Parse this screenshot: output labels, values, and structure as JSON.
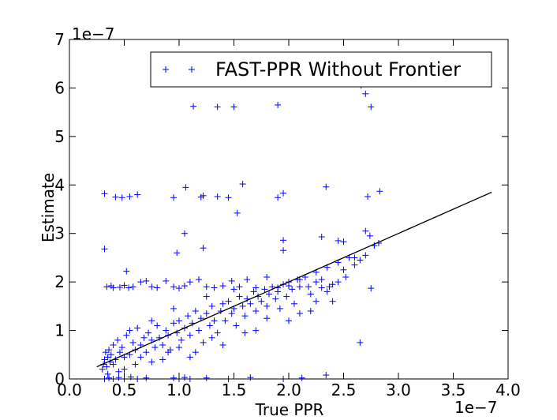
{
  "chart_data": {
    "type": "scatter",
    "xlabel": "True PPR",
    "ylabel": "Estimate",
    "xlim": [
      0.0,
      4.0
    ],
    "ylim": [
      0,
      7
    ],
    "x_ticks": [
      "0.0",
      "0.5",
      "1.0",
      "1.5",
      "2.0",
      "2.5",
      "3.0",
      "3.5",
      "4.0"
    ],
    "y_ticks": [
      "0",
      "1",
      "2",
      "3",
      "4",
      "5",
      "6",
      "7"
    ],
    "x_offset": "1e−7",
    "y_offset": "1e−7",
    "grid": false,
    "legend_position": "top-right",
    "marker_color": "#0000ff",
    "line_color": "#000000",
    "series": [
      {
        "name": "FAST-PPR Without Frontier",
        "marker": "+",
        "points": [
          [
            0.32,
            3.82
          ],
          [
            0.42,
            3.75
          ],
          [
            0.48,
            3.74
          ],
          [
            0.55,
            3.76
          ],
          [
            0.62,
            3.8
          ],
          [
            0.95,
            3.74
          ],
          [
            1.06,
            3.95
          ],
          [
            1.2,
            3.75
          ],
          [
            1.22,
            3.78
          ],
          [
            1.35,
            3.76
          ],
          [
            1.45,
            3.74
          ],
          [
            1.58,
            4.02
          ],
          [
            1.9,
            3.74
          ],
          [
            1.95,
            3.83
          ],
          [
            2.34,
            3.96
          ],
          [
            2.72,
            3.76
          ],
          [
            2.83,
            3.87
          ],
          [
            1.53,
            3.42
          ],
          [
            1.13,
            5.62
          ],
          [
            1.35,
            5.61
          ],
          [
            1.5,
            5.61
          ],
          [
            1.9,
            5.65
          ],
          [
            2.66,
            6.05
          ],
          [
            2.7,
            5.88
          ],
          [
            2.75,
            5.61
          ],
          [
            2.76,
            6.35
          ],
          [
            0.32,
            2.68
          ],
          [
            1.05,
            3.0
          ],
          [
            0.98,
            2.6
          ],
          [
            1.22,
            2.7
          ],
          [
            1.95,
            2.65
          ],
          [
            1.95,
            2.86
          ],
          [
            2.3,
            2.93
          ],
          [
            2.45,
            2.85
          ],
          [
            2.5,
            2.83
          ],
          [
            2.7,
            3.05
          ],
          [
            2.74,
            2.95
          ],
          [
            2.78,
            2.75
          ],
          [
            2.82,
            2.8
          ],
          [
            0.52,
            2.22
          ],
          [
            0.34,
            1.9
          ],
          [
            0.38,
            1.92
          ],
          [
            0.4,
            1.88
          ],
          [
            0.46,
            1.89
          ],
          [
            0.5,
            1.93
          ],
          [
            0.54,
            1.88
          ],
          [
            0.58,
            1.9
          ],
          [
            0.65,
            2.0
          ],
          [
            0.7,
            2.02
          ],
          [
            0.75,
            1.9
          ],
          [
            0.8,
            1.88
          ],
          [
            0.88,
            2.02
          ],
          [
            0.95,
            1.9
          ],
          [
            1.0,
            1.87
          ],
          [
            1.05,
            1.92
          ],
          [
            1.1,
            2.0
          ],
          [
            1.18,
            2.05
          ],
          [
            1.25,
            1.9
          ],
          [
            1.32,
            1.88
          ],
          [
            1.4,
            1.92
          ],
          [
            1.48,
            2.02
          ],
          [
            1.55,
            1.9
          ],
          [
            1.62,
            2.05
          ],
          [
            1.7,
            1.88
          ],
          [
            1.8,
            2.1
          ],
          [
            1.9,
            1.88
          ],
          [
            2.0,
            1.92
          ],
          [
            2.1,
            2.05
          ],
          [
            2.18,
            1.9
          ],
          [
            2.25,
            2.0
          ],
          [
            2.3,
            1.88
          ],
          [
            2.37,
            1.9
          ],
          [
            2.45,
            2.0
          ],
          [
            2.52,
            2.1
          ],
          [
            2.6,
            2.5
          ],
          [
            2.75,
            1.87
          ],
          [
            0.32,
            0.0
          ],
          [
            0.36,
            0.02
          ],
          [
            0.4,
            0.0
          ],
          [
            0.45,
            0.03
          ],
          [
            0.5,
            0.0
          ],
          [
            0.56,
            0.04
          ],
          [
            0.62,
            0.0
          ],
          [
            0.7,
            0.02
          ],
          [
            0.95,
            0.02
          ],
          [
            1.0,
            0.0
          ],
          [
            1.05,
            0.03
          ],
          [
            1.1,
            0.0
          ],
          [
            1.25,
            0.02
          ],
          [
            1.45,
            0.0
          ],
          [
            1.65,
            0.03
          ],
          [
            1.95,
            0.0
          ],
          [
            2.12,
            0.02
          ],
          [
            2.34,
            0.08
          ],
          [
            2.65,
            0.75
          ],
          [
            0.3,
            0.2
          ],
          [
            0.31,
            0.3
          ],
          [
            0.32,
            0.4
          ],
          [
            0.33,
            0.55
          ],
          [
            0.34,
            0.25
          ],
          [
            0.35,
            0.45
          ],
          [
            0.36,
            0.6
          ],
          [
            0.37,
            0.35
          ],
          [
            0.38,
            0.5
          ],
          [
            0.4,
            0.7
          ],
          [
            0.42,
            0.4
          ],
          [
            0.44,
            0.8
          ],
          [
            0.46,
            0.55
          ],
          [
            0.48,
            0.65
          ],
          [
            0.5,
            0.45
          ],
          [
            0.52,
            0.9
          ],
          [
            0.55,
            0.5
          ],
          [
            0.58,
            0.75
          ],
          [
            0.6,
            0.6
          ],
          [
            0.62,
            1.05
          ],
          [
            0.65,
            0.7
          ],
          [
            0.68,
            0.85
          ],
          [
            0.7,
            0.55
          ],
          [
            0.72,
            0.95
          ],
          [
            0.75,
            0.8
          ],
          [
            0.78,
            0.65
          ],
          [
            0.8,
            1.1
          ],
          [
            0.82,
            0.85
          ],
          [
            0.85,
            0.7
          ],
          [
            0.88,
            1.0
          ],
          [
            0.9,
            0.9
          ],
          [
            0.92,
            0.6
          ],
          [
            0.95,
            1.15
          ],
          [
            0.98,
            0.95
          ],
          [
            1.0,
            1.2
          ],
          [
            1.02,
            0.8
          ],
          [
            1.05,
            1.05
          ],
          [
            1.08,
            1.3
          ],
          [
            1.1,
            0.9
          ],
          [
            1.12,
            1.15
          ],
          [
            1.15,
            1.4
          ],
          [
            1.18,
            1.0
          ],
          [
            1.2,
            1.25
          ],
          [
            1.22,
            0.75
          ],
          [
            1.25,
            1.35
          ],
          [
            1.28,
            1.1
          ],
          [
            1.3,
            1.5
          ],
          [
            1.32,
            1.2
          ],
          [
            1.35,
            0.95
          ],
          [
            1.38,
            1.4
          ],
          [
            1.4,
            1.55
          ],
          [
            1.42,
            1.2
          ],
          [
            1.45,
            1.6
          ],
          [
            1.48,
            1.35
          ],
          [
            1.5,
            1.45
          ],
          [
            1.52,
            1.1
          ],
          [
            1.55,
            1.7
          ],
          [
            1.58,
            1.5
          ],
          [
            1.6,
            1.3
          ],
          [
            1.62,
            1.65
          ],
          [
            1.65,
            1.55
          ],
          [
            1.68,
            1.8
          ],
          [
            1.7,
            1.4
          ],
          [
            1.72,
            1.7
          ],
          [
            1.75,
            1.6
          ],
          [
            1.78,
            1.85
          ],
          [
            1.8,
            1.5
          ],
          [
            1.82,
            1.75
          ],
          [
            1.85,
            1.9
          ],
          [
            1.88,
            1.65
          ],
          [
            1.9,
            1.8
          ],
          [
            1.92,
            1.45
          ],
          [
            1.95,
            1.95
          ],
          [
            1.98,
            1.7
          ],
          [
            2.0,
            2.0
          ],
          [
            2.03,
            1.85
          ],
          [
            2.05,
            1.55
          ],
          [
            2.08,
            2.05
          ],
          [
            2.1,
            1.9
          ],
          [
            2.15,
            2.1
          ],
          [
            2.2,
            1.75
          ],
          [
            2.25,
            2.2
          ],
          [
            2.3,
            2.05
          ],
          [
            2.35,
            2.3
          ],
          [
            2.4,
            1.95
          ],
          [
            2.45,
            2.4
          ],
          [
            2.5,
            2.25
          ],
          [
            2.55,
            2.5
          ],
          [
            2.6,
            2.35
          ],
          [
            2.65,
            2.45
          ],
          [
            2.7,
            2.55
          ],
          [
            0.45,
            0.15
          ],
          [
            0.6,
            0.3
          ],
          [
            0.85,
            0.4
          ],
          [
            1.15,
            0.55
          ],
          [
            1.4,
            0.7
          ],
          [
            1.7,
            1.0
          ],
          [
            2.0,
            1.2
          ],
          [
            2.2,
            1.4
          ],
          [
            2.4,
            1.6
          ],
          [
            0.55,
            1.0
          ],
          [
            0.75,
            1.2
          ],
          [
            0.95,
            1.45
          ],
          [
            1.25,
            1.7
          ],
          [
            1.5,
            1.85
          ],
          [
            0.35,
            0.1
          ],
          [
            0.4,
            0.3
          ],
          [
            0.5,
            0.2
          ],
          [
            0.65,
            0.45
          ],
          [
            0.75,
            0.35
          ],
          [
            0.9,
            0.55
          ],
          [
            1.0,
            0.65
          ],
          [
            1.1,
            0.45
          ],
          [
            1.3,
            0.85
          ],
          [
            1.6,
            0.95
          ],
          [
            1.8,
            1.25
          ],
          [
            2.1,
            1.35
          ],
          [
            2.25,
            1.6
          ],
          [
            2.35,
            1.8
          ]
        ]
      },
      {
        "type": "line",
        "points": [
          [
            0.25,
            0.25
          ],
          [
            3.85,
            3.85
          ]
        ]
      }
    ]
  }
}
